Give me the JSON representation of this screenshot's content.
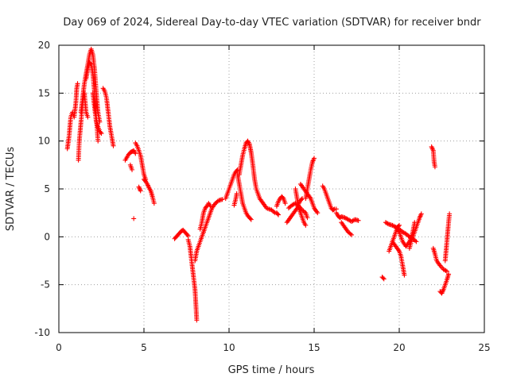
{
  "colors": {
    "series": "#ff0000",
    "grid": "#a0a0a0",
    "frame": "#000000"
  },
  "chart_data": {
    "type": "scatter",
    "title": "Day 069 of 2024, Sidereal Day-to-day VTEC variation (SDTVAR) for receiver bndr",
    "xlabel": "GPS time / hours",
    "ylabel": "SDTVAR / TECUs",
    "xlim": [
      0,
      25
    ],
    "ylim": [
      -10,
      20
    ],
    "xticks": [
      0,
      5,
      10,
      15,
      20,
      25
    ],
    "yticks": [
      -10,
      -5,
      0,
      5,
      10,
      15,
      20
    ],
    "grid": true,
    "marker": "plus",
    "series": [
      {
        "name": "SDTVAR",
        "curves": [
          [
            [
              0.5,
              9.2
            ],
            [
              0.6,
              10.5
            ],
            [
              0.7,
              12.5
            ],
            [
              0.8,
              13
            ],
            [
              0.9,
              12.5
            ],
            [
              1.0,
              14
            ],
            [
              1.05,
              15.5
            ],
            [
              1.1,
              16
            ]
          ],
          [
            [
              1.15,
              8
            ],
            [
              1.2,
              10
            ],
            [
              1.3,
              12
            ],
            [
              1.4,
              14
            ],
            [
              1.5,
              15
            ],
            [
              1.6,
              13
            ],
            [
              1.7,
              12.5
            ]
          ],
          [
            [
              1.3,
              13
            ],
            [
              1.4,
              14.5
            ],
            [
              1.5,
              16
            ],
            [
              1.6,
              17
            ],
            [
              1.7,
              18
            ],
            [
              1.8,
              19
            ],
            [
              1.9,
              19.6
            ],
            [
              2.0,
              19
            ],
            [
              2.1,
              17.5
            ],
            [
              2.2,
              15
            ],
            [
              2.3,
              13
            ],
            [
              2.4,
              12
            ]
          ],
          [
            [
              1.6,
              16.5
            ],
            [
              1.7,
              17.5
            ],
            [
              1.8,
              18.2
            ],
            [
              1.9,
              18
            ],
            [
              2.0,
              17
            ],
            [
              2.1,
              15
            ],
            [
              2.2,
              12.5
            ],
            [
              2.3,
              10
            ]
          ],
          [
            [
              2.0,
              15
            ],
            [
              2.1,
              13.5
            ],
            [
              2.2,
              12
            ],
            [
              2.3,
              11.5
            ],
            [
              2.4,
              11
            ],
            [
              2.5,
              10.8
            ]
          ],
          [
            [
              2.6,
              15.5
            ],
            [
              2.7,
              15.2
            ],
            [
              2.8,
              14.5
            ],
            [
              2.9,
              13
            ],
            [
              3.0,
              11.5
            ],
            [
              3.1,
              10.5
            ],
            [
              3.2,
              9.5
            ]
          ],
          [
            [
              3.9,
              8
            ],
            [
              4.0,
              8.3
            ],
            [
              4.1,
              8.6
            ],
            [
              4.2,
              8.8
            ],
            [
              4.3,
              8.9
            ],
            [
              4.4,
              9
            ],
            [
              4.5,
              8.7
            ]
          ],
          [
            [
              4.2,
              7.5
            ],
            [
              4.3,
              7
            ]
          ],
          [
            [
              4.5,
              9.8
            ],
            [
              4.6,
              9.5
            ],
            [
              4.7,
              9
            ],
            [
              4.8,
              8.5
            ],
            [
              4.9,
              7.5
            ],
            [
              5.0,
              6.5
            ],
            [
              5.1,
              6
            ]
          ],
          [
            [
              4.7,
              5.2
            ],
            [
              4.8,
              4.8
            ]
          ],
          [
            [
              5.0,
              6
            ],
            [
              5.1,
              5.8
            ],
            [
              5.2,
              5.5
            ],
            [
              5.3,
              5.1
            ],
            [
              5.4,
              4.8
            ],
            [
              5.5,
              4.2
            ],
            [
              5.6,
              3.5
            ]
          ],
          [
            [
              4.4,
              1.9
            ]
          ],
          [
            [
              6.8,
              -0.2
            ],
            [
              6.9,
              0
            ],
            [
              7.0,
              0.2
            ],
            [
              7.1,
              0.4
            ],
            [
              7.2,
              0.6
            ],
            [
              7.3,
              0.7
            ],
            [
              7.4,
              0.5
            ],
            [
              7.5,
              0.3
            ],
            [
              7.6,
              0.1
            ]
          ],
          [
            [
              7.6,
              -0.3
            ],
            [
              7.7,
              -1
            ],
            [
              7.8,
              -2.5
            ],
            [
              7.9,
              -4
            ],
            [
              8.0,
              -5.5
            ],
            [
              8.05,
              -7
            ],
            [
              8.1,
              -8.7
            ]
          ],
          [
            [
              8.0,
              -2.5
            ],
            [
              8.1,
              -1.5
            ],
            [
              8.2,
              -1
            ],
            [
              8.3,
              -0.5
            ],
            [
              8.4,
              0
            ],
            [
              8.5,
              0.5
            ]
          ],
          [
            [
              8.3,
              0.8
            ],
            [
              8.4,
              1.5
            ],
            [
              8.5,
              2.5
            ],
            [
              8.6,
              3
            ],
            [
              8.7,
              3.2
            ],
            [
              8.8,
              3.5
            ],
            [
              8.9,
              3.2
            ]
          ],
          [
            [
              8.5,
              0.5
            ],
            [
              8.6,
              1
            ],
            [
              8.7,
              1.5
            ],
            [
              8.8,
              2
            ],
            [
              8.9,
              2.5
            ],
            [
              9.0,
              3
            ],
            [
              9.2,
              3.5
            ],
            [
              9.4,
              3.8
            ],
            [
              9.6,
              3.9
            ]
          ],
          [
            [
              9.8,
              4
            ],
            [
              9.9,
              4.5
            ],
            [
              10.0,
              5
            ],
            [
              10.1,
              5.5
            ],
            [
              10.2,
              6
            ],
            [
              10.3,
              6.5
            ],
            [
              10.4,
              6.8
            ],
            [
              10.5,
              7
            ]
          ],
          [
            [
              10.5,
              6.5
            ],
            [
              10.6,
              5.5
            ],
            [
              10.7,
              4.5
            ],
            [
              10.8,
              3.5
            ],
            [
              10.9,
              3
            ],
            [
              11.0,
              2.5
            ],
            [
              11.1,
              2.2
            ],
            [
              11.2,
              2
            ],
            [
              11.3,
              1.8
            ]
          ],
          [
            [
              10.3,
              3.3
            ],
            [
              10.4,
              4
            ],
            [
              10.45,
              4.5
            ]
          ],
          [
            [
              10.6,
              6.5
            ],
            [
              10.7,
              7.5
            ],
            [
              10.8,
              8.5
            ],
            [
              10.9,
              9.2
            ],
            [
              11.0,
              9.8
            ],
            [
              11.1,
              10
            ],
            [
              11.2,
              9.7
            ],
            [
              11.3,
              8.8
            ],
            [
              11.4,
              7.5
            ],
            [
              11.5,
              6
            ],
            [
              11.6,
              5
            ],
            [
              11.8,
              4
            ],
            [
              12.0,
              3.5
            ],
            [
              12.2,
              3
            ],
            [
              12.5,
              2.8
            ],
            [
              12.7,
              2.5
            ]
          ],
          [
            [
              12.8,
              3.2
            ],
            [
              12.9,
              3.7
            ],
            [
              13.0,
              4
            ],
            [
              13.1,
              4.2
            ],
            [
              13.2,
              4
            ],
            [
              13.3,
              3.5
            ]
          ],
          [
            [
              12.8,
              2.5
            ],
            [
              12.9,
              2.3
            ]
          ],
          [
            [
              13.4,
              1.5
            ],
            [
              13.6,
              2
            ],
            [
              13.8,
              2.5
            ],
            [
              14.0,
              3
            ],
            [
              14.1,
              3.5
            ],
            [
              14.2,
              3.8
            ],
            [
              14.3,
              4
            ]
          ],
          [
            [
              13.5,
              3
            ],
            [
              13.7,
              3.3
            ],
            [
              13.9,
              3.5
            ],
            [
              14.1,
              3.2
            ],
            [
              14.3,
              2.8
            ],
            [
              14.5,
              2.5
            ],
            [
              14.6,
              2
            ]
          ],
          [
            [
              13.9,
              5
            ],
            [
              14.0,
              4
            ],
            [
              14.1,
              3
            ],
            [
              14.2,
              2.5
            ],
            [
              14.3,
              2
            ],
            [
              14.4,
              1.5
            ],
            [
              14.5,
              1.2
            ]
          ],
          [
            [
              14.2,
              5.5
            ],
            [
              14.4,
              5
            ],
            [
              14.6,
              4.5
            ],
            [
              14.8,
              4
            ],
            [
              15.0,
              3
            ],
            [
              15.2,
              2.5
            ]
          ],
          [
            [
              14.5,
              4
            ],
            [
              14.6,
              5
            ],
            [
              14.7,
              6
            ],
            [
              14.8,
              7
            ],
            [
              14.9,
              7.8
            ],
            [
              15.0,
              8.2
            ]
          ],
          [
            [
              15.5,
              5.3
            ],
            [
              15.6,
              5
            ],
            [
              15.7,
              4.5
            ],
            [
              15.8,
              4
            ],
            [
              15.9,
              3.5
            ],
            [
              16.0,
              3
            ],
            [
              16.1,
              2.8
            ],
            [
              16.2,
              2.9
            ],
            [
              16.3,
              2.9
            ]
          ],
          [
            [
              16.3,
              2.5
            ],
            [
              16.4,
              2.2
            ],
            [
              16.5,
              2
            ],
            [
              16.6,
              2.1
            ],
            [
              16.8,
              2
            ],
            [
              17.0,
              1.8
            ],
            [
              17.2,
              1.6
            ],
            [
              17.4,
              1.8
            ],
            [
              17.6,
              1.7
            ]
          ],
          [
            [
              16.6,
              1.5
            ],
            [
              16.8,
              1
            ],
            [
              17.0,
              0.5
            ],
            [
              17.2,
              0.2
            ]
          ],
          [
            [
              19.0,
              -4.2
            ],
            [
              19.1,
              -4.4
            ]
          ],
          [
            [
              19.2,
              1.5
            ],
            [
              19.4,
              1.3
            ],
            [
              19.6,
              1.2
            ],
            [
              19.8,
              1
            ],
            [
              20.0,
              0.8
            ],
            [
              20.2,
              0.5
            ],
            [
              20.4,
              0.3
            ],
            [
              20.6,
              0
            ],
            [
              20.8,
              -0.2
            ],
            [
              21.0,
              -0.5
            ]
          ],
          [
            [
              19.4,
              -1.5
            ],
            [
              19.5,
              -1
            ],
            [
              19.6,
              -0.5
            ],
            [
              19.7,
              0
            ],
            [
              19.8,
              0.5
            ],
            [
              19.9,
              1
            ],
            [
              20.0,
              1.2
            ]
          ],
          [
            [
              19.6,
              -0.5
            ],
            [
              19.8,
              -1
            ],
            [
              20.0,
              -1.5
            ],
            [
              20.1,
              -2
            ],
            [
              20.2,
              -3
            ],
            [
              20.3,
              -4
            ]
          ],
          [
            [
              19.8,
              1
            ],
            [
              20.0,
              0.5
            ],
            [
              20.2,
              -0.5
            ],
            [
              20.4,
              -1
            ],
            [
              20.6,
              -0.5
            ],
            [
              20.8,
              0.5
            ],
            [
              20.9,
              1.5
            ]
          ],
          [
            [
              20.6,
              -1.2
            ],
            [
              20.7,
              -0.5
            ],
            [
              20.8,
              0
            ],
            [
              20.9,
              0.5
            ],
            [
              21.0,
              1
            ],
            [
              21.1,
              1.5
            ],
            [
              21.2,
              2
            ],
            [
              21.3,
              2.4
            ]
          ],
          [
            [
              21.9,
              9.4
            ],
            [
              22.0,
              9
            ],
            [
              22.05,
              7.8
            ],
            [
              22.1,
              7.3
            ]
          ],
          [
            [
              22.0,
              -1.2
            ],
            [
              22.1,
              -1.8
            ],
            [
              22.2,
              -2.5
            ],
            [
              22.4,
              -3
            ],
            [
              22.6,
              -3.4
            ],
            [
              22.8,
              -3.6
            ]
          ],
          [
            [
              22.4,
              -5.7
            ],
            [
              22.5,
              -5.9
            ],
            [
              22.6,
              -5.5
            ],
            [
              22.7,
              -5
            ],
            [
              22.8,
              -4.5
            ],
            [
              22.9,
              -3.9
            ]
          ],
          [
            [
              22.7,
              -2.5
            ],
            [
              22.75,
              -1.5
            ],
            [
              22.8,
              -0.5
            ],
            [
              22.85,
              0.5
            ],
            [
              22.9,
              1.5
            ],
            [
              22.95,
              2.4
            ]
          ]
        ]
      }
    ]
  }
}
